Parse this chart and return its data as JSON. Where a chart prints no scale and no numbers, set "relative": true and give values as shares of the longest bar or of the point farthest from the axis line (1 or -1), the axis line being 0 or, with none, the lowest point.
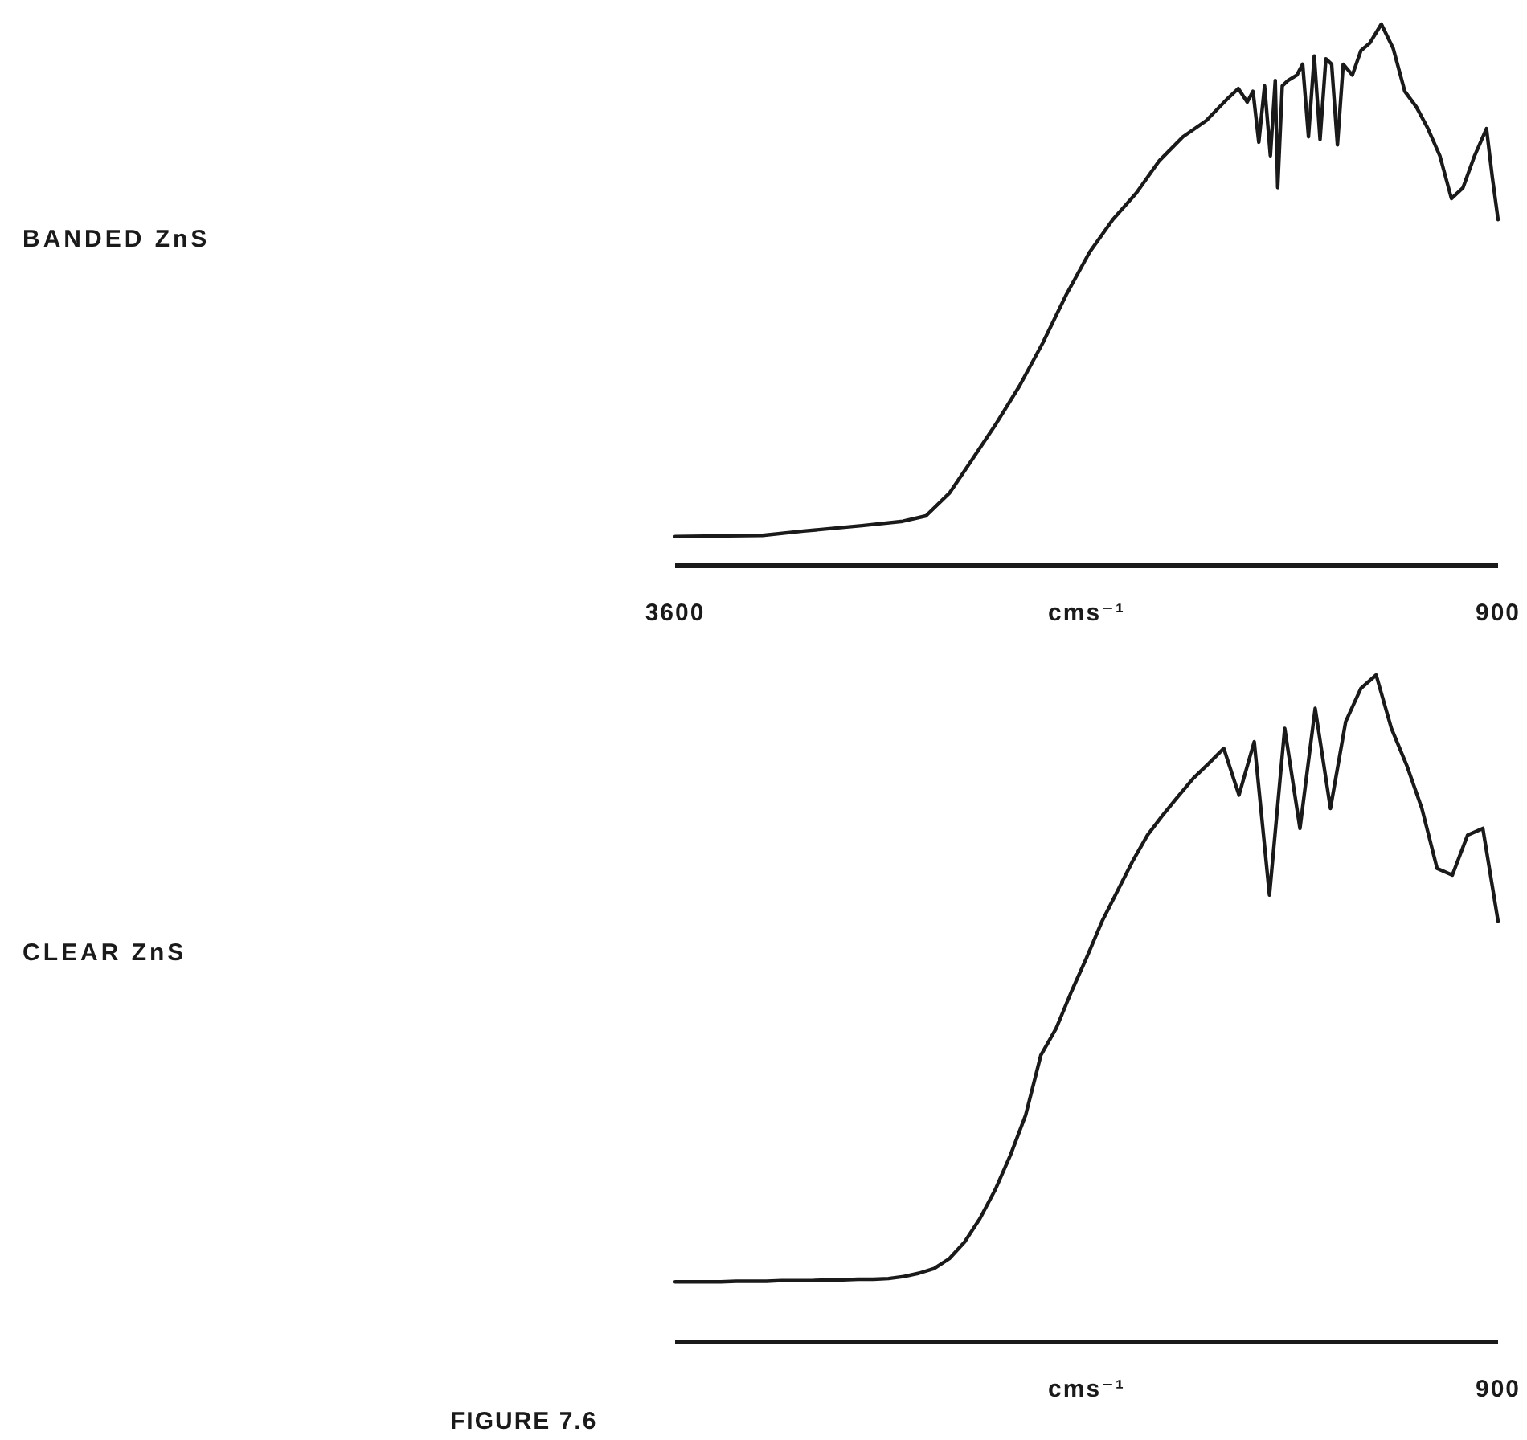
{
  "chart_data": [
    {
      "type": "line",
      "relative": true,
      "xlabel": "cms⁻¹",
      "xlim": [
        3600,
        900
      ],
      "xticks": [
        3600,
        900
      ],
      "series": [
        {
          "name": "BANDED ZnS",
          "color": "#1a1a1a",
          "x": [
            3600,
            3313,
            3179,
            2987,
            2853,
            2777,
            2700,
            2623,
            2547,
            2470,
            2394,
            2317,
            2240,
            2164,
            2087,
            2011,
            1934,
            1857,
            1790,
            1752,
            1723,
            1704,
            1685,
            1666,
            1647,
            1631,
            1623,
            1608,
            1589,
            1560,
            1541,
            1522,
            1503,
            1484,
            1465,
            1446,
            1427,
            1408,
            1378,
            1350,
            1321,
            1283,
            1244,
            1206,
            1168,
            1130,
            1091,
            1053,
            1015,
            977,
            938,
            919,
            900
          ],
          "values": [
            0.054,
            0.056,
            0.064,
            0.074,
            0.082,
            0.092,
            0.134,
            0.198,
            0.262,
            0.332,
            0.411,
            0.5,
            0.579,
            0.639,
            0.688,
            0.748,
            0.792,
            0.822,
            0.861,
            0.881,
            0.856,
            0.876,
            0.782,
            0.886,
            0.757,
            0.896,
            0.698,
            0.886,
            0.896,
            0.906,
            0.926,
            0.792,
            0.941,
            0.787,
            0.936,
            0.926,
            0.777,
            0.926,
            0.906,
            0.951,
            0.965,
            1.0,
            0.955,
            0.876,
            0.847,
            0.807,
            0.757,
            0.678,
            0.698,
            0.757,
            0.807,
            0.718,
            0.639
          ]
        }
      ]
    },
    {
      "type": "line",
      "relative": true,
      "xlabel": "cms⁻¹",
      "annotations": [
        "900",
        "FIGURE 7.6"
      ],
      "categories": [
        null,
        null,
        null,
        null,
        null,
        null,
        null,
        null,
        null,
        null,
        null,
        null,
        null,
        null,
        null,
        null,
        null,
        null,
        null,
        null,
        null,
        null,
        null,
        null,
        null,
        null,
        null,
        null,
        null,
        null,
        null,
        null,
        null,
        null,
        null,
        null,
        null,
        null,
        null,
        null,
        null,
        null,
        null,
        null,
        null,
        null,
        null,
        null,
        null,
        null,
        null,
        null,
        null,
        null,
        null
      ],
      "series": [
        {
          "name": "CLEAR ZnS",
          "color": "#1a1a1a",
          "values": [
            0.09,
            0.09,
            0.09,
            0.09,
            0.091,
            0.091,
            0.091,
            0.092,
            0.092,
            0.092,
            0.093,
            0.093,
            0.094,
            0.094,
            0.095,
            0.098,
            0.103,
            0.11,
            0.125,
            0.15,
            0.185,
            0.228,
            0.28,
            0.34,
            0.43,
            0.47,
            0.525,
            0.576,
            0.63,
            0.675,
            0.72,
            0.76,
            0.79,
            0.818,
            0.845,
            0.867,
            0.89,
            0.82,
            0.9,
            0.67,
            0.92,
            0.77,
            0.95,
            0.8,
            0.93,
            0.98,
            1.0,
            0.92,
            0.865,
            0.8,
            0.71,
            0.7,
            0.76,
            0.77,
            0.631
          ]
        }
      ]
    }
  ]
}
